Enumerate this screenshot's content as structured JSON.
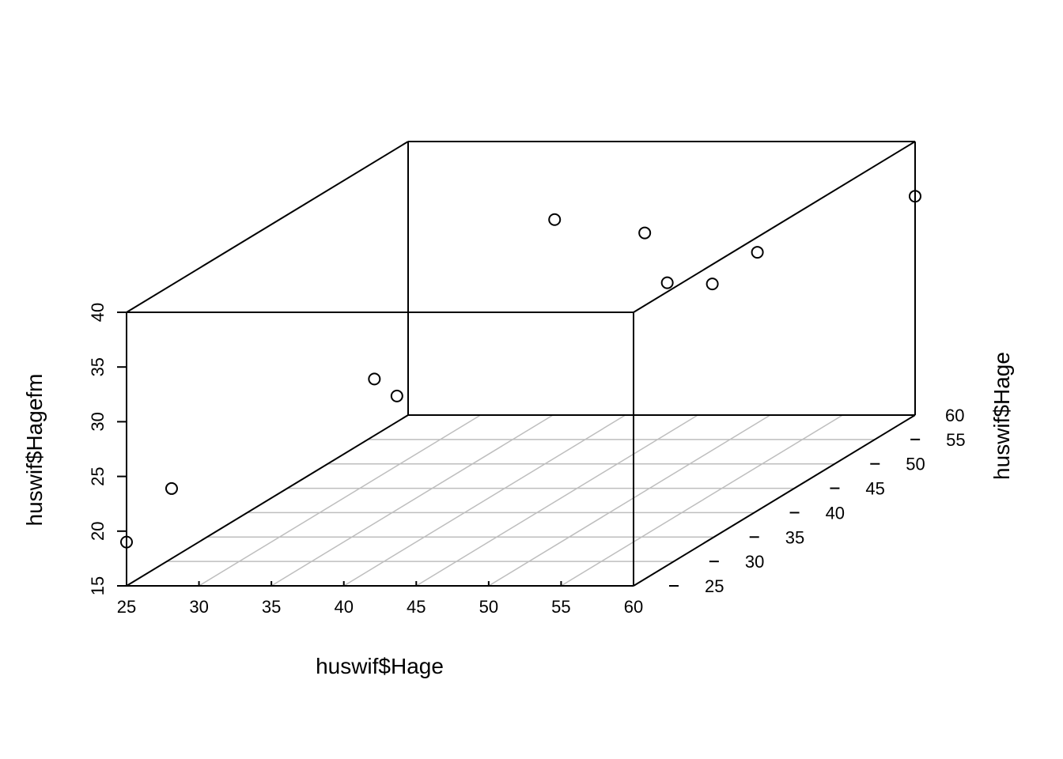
{
  "chart_data": {
    "type": "scatter",
    "projection": "3d",
    "title": "",
    "xlabel": "huswif$Hage",
    "ylabel": "huswif$Hage",
    "zlabel": "huswif$Hagefm",
    "xlim": [
      25,
      60
    ],
    "ylim": [
      25,
      60
    ],
    "zlim": [
      15,
      40
    ],
    "x_ticks": [
      25,
      30,
      35,
      40,
      45,
      50,
      55,
      60
    ],
    "y_ticks": [
      25,
      30,
      35,
      40,
      45,
      50,
      55,
      60
    ],
    "z_ticks": [
      15,
      20,
      25,
      30,
      35,
      40
    ],
    "grid": "floor",
    "box": true,
    "points": [
      {
        "x": 25,
        "y": 25,
        "z": 19
      },
      {
        "x": 27,
        "y": 27,
        "z": 23
      },
      {
        "x": 36,
        "y": 36,
        "z": 29
      },
      {
        "x": 37,
        "y": 37,
        "z": 27
      },
      {
        "x": 44,
        "y": 44,
        "z": 40
      },
      {
        "x": 48,
        "y": 48,
        "z": 37
      },
      {
        "x": 49,
        "y": 49,
        "z": 32
      },
      {
        "x": 51,
        "y": 51,
        "z": 31
      },
      {
        "x": 53,
        "y": 53,
        "z": 33
      },
      {
        "x": 60,
        "y": 60,
        "z": 35
      }
    ]
  }
}
